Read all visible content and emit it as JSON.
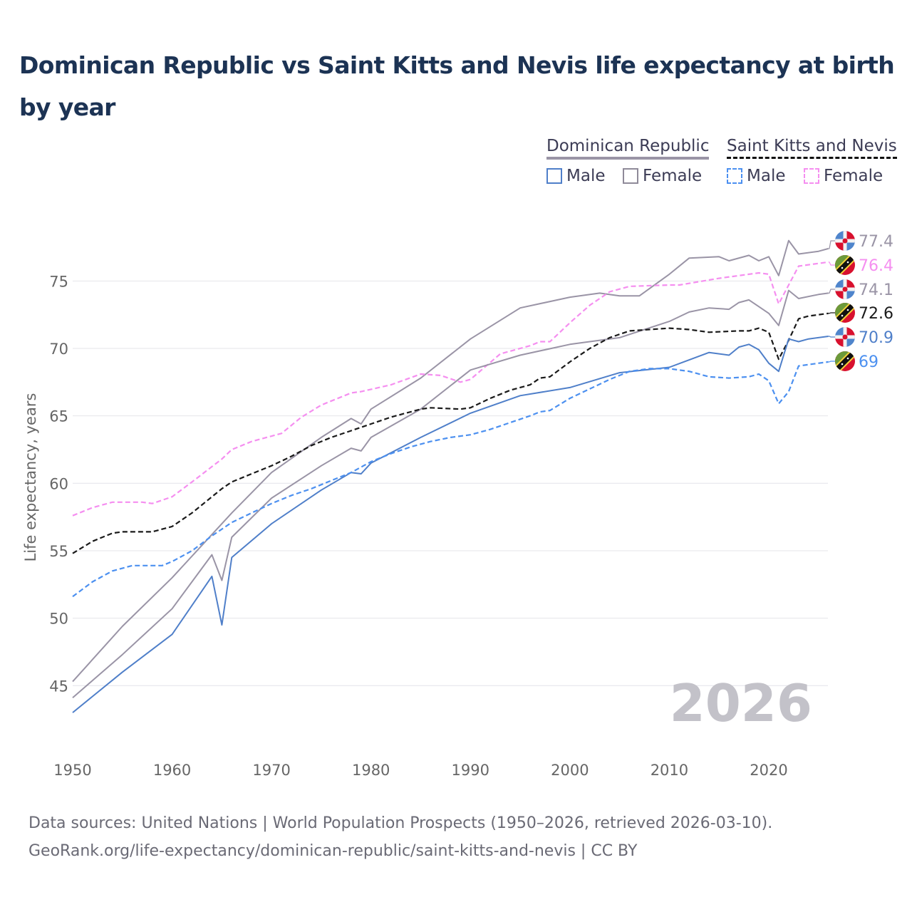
{
  "title": "Dominican Republic vs Saint Kitts and Nevis life expectancy at birth by year",
  "legend": {
    "groups": [
      {
        "label": "Dominican Republic",
        "items": [
          {
            "label": "Male",
            "color": "#4f7fc9",
            "style": "solid"
          },
          {
            "label": "Female",
            "color": "#8f8a99",
            "style": "solid"
          }
        ]
      },
      {
        "label": "Saint Kitts and Nevis",
        "items": [
          {
            "label": "Male",
            "color": "#4c90f0",
            "style": "dashed"
          },
          {
            "label": "Female",
            "color": "#f58ff0",
            "style": "dashed"
          }
        ]
      }
    ]
  },
  "year_watermark": "2026",
  "source": {
    "line1": "Data sources: United Nations | World Population Prospects (1950–2026, retrieved 2026-03-10).",
    "line2": "GeoRank.org/life-expectancy/dominican-republic/saint-kitts-and-nevis | CC BY"
  },
  "chart_data": {
    "type": "line",
    "title": "Dominican Republic vs Saint Kitts and Nevis life expectancy at birth by year",
    "xlabel": "",
    "ylabel": "Life expectancy, years",
    "xlim": [
      1950,
      2026
    ],
    "ylim": [
      42.5,
      79
    ],
    "xticks": [
      1950,
      1960,
      1970,
      1980,
      1990,
      2000,
      2010,
      2020
    ],
    "yticks": [
      45,
      50,
      55,
      60,
      65,
      70,
      75
    ],
    "grid": true,
    "legend_position": "top-right",
    "series": [
      {
        "name": "Dominican Republic Female",
        "country": "DR",
        "color": "#9a94a6",
        "dash": false,
        "end_label": "77.4",
        "x": [
          1950,
          1955,
          1960,
          1964,
          1966,
          1970,
          1975,
          1978,
          1979,
          1980,
          1985,
          1990,
          1995,
          2000,
          2003,
          2005,
          2007,
          2010,
          2012,
          2015,
          2016,
          2018,
          2019,
          2020,
          2021,
          2022,
          2023,
          2025,
          2026
        ],
        "y": [
          45.3,
          49.4,
          53.0,
          56.2,
          57.8,
          60.8,
          63.4,
          64.8,
          64.4,
          65.5,
          67.8,
          70.7,
          73.0,
          73.8,
          74.1,
          73.9,
          73.9,
          75.5,
          76.7,
          76.8,
          76.5,
          76.9,
          76.5,
          76.8,
          75.4,
          78.0,
          77.0,
          77.2,
          77.4
        ]
      },
      {
        "name": "Saint Kitts and Nevis Female",
        "country": "SKN",
        "color": "#f58ff0",
        "dash": true,
        "end_label": "76.4",
        "x": [
          1950,
          1952,
          1954,
          1957,
          1958,
          1960,
          1962,
          1965,
          1966,
          1968,
          1971,
          1973,
          1975,
          1978,
          1979,
          1982,
          1985,
          1987,
          1989,
          1990,
          1993,
          1996,
          1997,
          1998,
          2000,
          2002,
          2004,
          2006,
          2010,
          2011,
          2015,
          2017,
          2019,
          2020,
          2021,
          2022,
          2023,
          2026
        ],
        "y": [
          57.6,
          58.2,
          58.6,
          58.6,
          58.5,
          59.0,
          60.1,
          61.8,
          62.5,
          63.1,
          63.7,
          64.9,
          65.8,
          66.7,
          66.8,
          67.3,
          68.1,
          68.0,
          67.5,
          67.7,
          69.6,
          70.2,
          70.5,
          70.5,
          71.9,
          73.2,
          74.2,
          74.6,
          74.7,
          74.7,
          75.2,
          75.4,
          75.6,
          75.5,
          73.3,
          74.7,
          76.1,
          76.4
        ]
      },
      {
        "name": "Dominican Republic Total",
        "country": "DR",
        "color": "#9a94a6",
        "dash": false,
        "end_label": "74.1",
        "x": [
          1950,
          1955,
          1960,
          1964,
          1965,
          1966,
          1970,
          1975,
          1978,
          1979,
          1980,
          1985,
          1990,
          1995,
          2000,
          2005,
          2010,
          2012,
          2014,
          2016,
          2017,
          2018,
          2019,
          2020,
          2021,
          2022,
          2023,
          2025,
          2026
        ],
        "y": [
          44.1,
          47.3,
          50.7,
          54.7,
          52.8,
          56.0,
          58.9,
          61.3,
          62.6,
          62.4,
          63.4,
          65.5,
          68.4,
          69.5,
          70.3,
          70.8,
          72.0,
          72.7,
          73.0,
          72.9,
          73.4,
          73.6,
          73.1,
          72.6,
          71.7,
          74.3,
          73.7,
          74.0,
          74.1
        ]
      },
      {
        "name": "Saint Kitts and Nevis Total",
        "country": "SKN",
        "color": "#1a1a1a",
        "dash": true,
        "end_label": "72.6",
        "x": [
          1950,
          1952,
          1954,
          1955,
          1958,
          1960,
          1962,
          1965,
          1966,
          1968,
          1970,
          1972,
          1974,
          1976,
          1978,
          1980,
          1982,
          1985,
          1986,
          1989,
          1990,
          1992,
          1994,
          1996,
          1997,
          1998,
          2000,
          2002,
          2004,
          2006,
          2010,
          2012,
          2014,
          2017,
          2018,
          2019,
          2020,
          2021,
          2022,
          2023,
          2024,
          2026
        ],
        "y": [
          54.8,
          55.7,
          56.3,
          56.4,
          56.4,
          56.8,
          57.8,
          59.6,
          60.1,
          60.7,
          61.3,
          62.0,
          62.8,
          63.4,
          63.9,
          64.4,
          64.9,
          65.5,
          65.6,
          65.5,
          65.6,
          66.3,
          66.9,
          67.3,
          67.8,
          67.9,
          69.0,
          70.0,
          70.8,
          71.3,
          71.5,
          71.4,
          71.2,
          71.3,
          71.3,
          71.5,
          71.2,
          69.2,
          70.6,
          72.2,
          72.4,
          72.6
        ]
      },
      {
        "name": "Dominican Republic Male",
        "country": "DR",
        "color": "#4f7fc9",
        "dash": false,
        "end_label": "70.9",
        "x": [
          1950,
          1955,
          1960,
          1964,
          1965,
          1966,
          1970,
          1975,
          1978,
          1979,
          1980,
          1985,
          1990,
          1995,
          2000,
          2005,
          2010,
          2014,
          2016,
          2017,
          2018,
          2019,
          2020,
          2021,
          2022,
          2023,
          2024,
          2026
        ],
        "y": [
          43.0,
          46.0,
          48.8,
          53.1,
          49.5,
          54.5,
          57.0,
          59.5,
          60.8,
          60.7,
          61.5,
          63.4,
          65.2,
          66.5,
          67.1,
          68.2,
          68.6,
          69.7,
          69.5,
          70.1,
          70.3,
          69.9,
          68.9,
          68.3,
          70.7,
          70.5,
          70.7,
          70.9
        ]
      },
      {
        "name": "Saint Kitts and Nevis Male",
        "country": "SKN",
        "color": "#4c90f0",
        "dash": true,
        "end_label": "69",
        "x": [
          1950,
          1952,
          1954,
          1956,
          1959,
          1960,
          1962,
          1964,
          1966,
          1968,
          1970,
          1972,
          1974,
          1976,
          1978,
          1980,
          1982,
          1984,
          1986,
          1988,
          1990,
          1992,
          1994,
          1996,
          1997,
          1998,
          2000,
          2002,
          2004,
          2006,
          2008,
          2010,
          2012,
          2014,
          2016,
          2018,
          2019,
          2020,
          2021,
          2022,
          2023,
          2024,
          2026
        ],
        "y": [
          51.6,
          52.7,
          53.5,
          53.9,
          53.9,
          54.2,
          55.0,
          56.1,
          57.1,
          57.8,
          58.5,
          59.1,
          59.6,
          60.2,
          60.8,
          61.6,
          62.2,
          62.7,
          63.1,
          63.4,
          63.6,
          64.0,
          64.5,
          65.0,
          65.3,
          65.4,
          66.3,
          67.0,
          67.7,
          68.3,
          68.5,
          68.5,
          68.3,
          67.9,
          67.8,
          67.9,
          68.1,
          67.6,
          65.9,
          66.8,
          68.7,
          68.8,
          69.0
        ]
      }
    ]
  }
}
